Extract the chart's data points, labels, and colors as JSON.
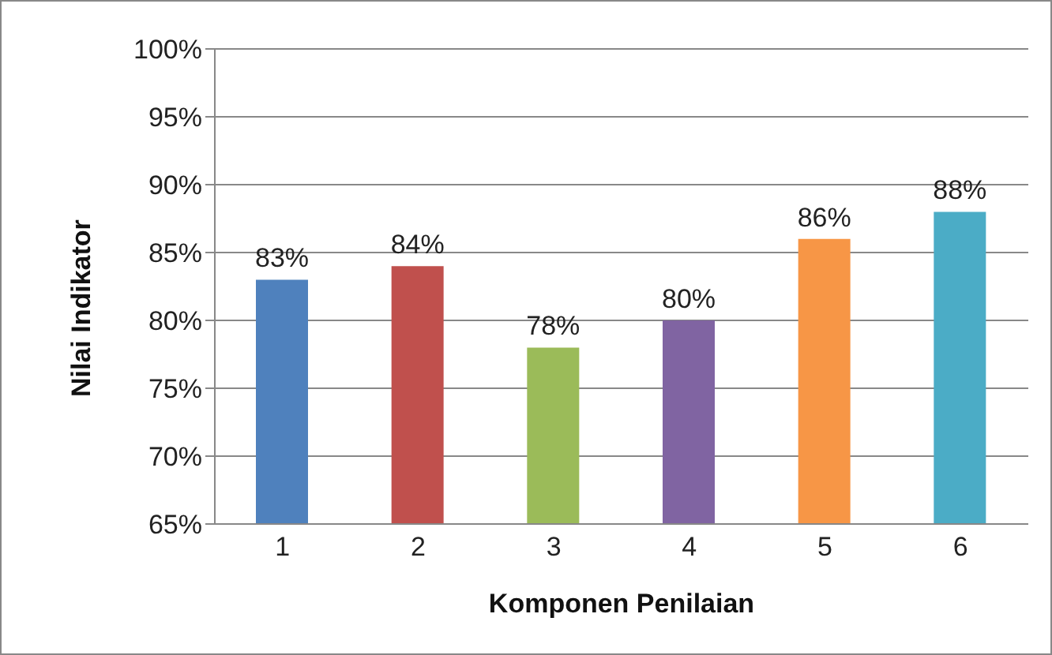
{
  "chart_data": {
    "type": "bar",
    "xlabel": "Komponen Penilaian",
    "ylabel": "Nilai Indikator",
    "categories": [
      "1",
      "2",
      "3",
      "4",
      "5",
      "6"
    ],
    "values": [
      83,
      84,
      78,
      80,
      86,
      88
    ],
    "colors": [
      "#4f81bd",
      "#c0504d",
      "#9bbb59",
      "#8064a2",
      "#f79646",
      "#4bacc6"
    ],
    "value_labels": [
      "83%",
      "84%",
      "78%",
      "80%",
      "86%",
      "88%"
    ],
    "ylim": [
      65,
      100
    ],
    "yticks": [
      {
        "value": 65,
        "label": "65%"
      },
      {
        "value": 70,
        "label": "70%"
      },
      {
        "value": 75,
        "label": "75%"
      },
      {
        "value": 80,
        "label": "80%"
      },
      {
        "value": 85,
        "label": "85%"
      },
      {
        "value": 90,
        "label": "90%"
      },
      {
        "value": 95,
        "label": "95%"
      },
      {
        "value": 100,
        "label": "100%"
      }
    ],
    "grid": "y",
    "legend": false
  }
}
